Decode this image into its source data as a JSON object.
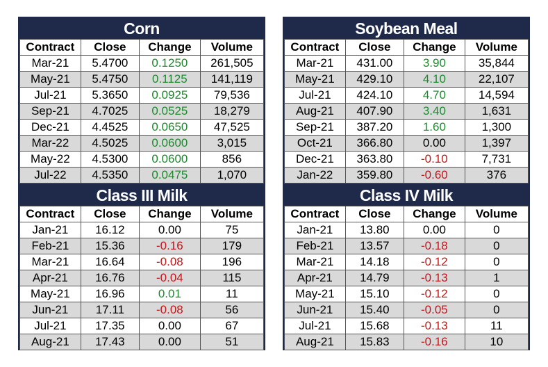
{
  "columns": [
    "Contract",
    "Close",
    "Change",
    "Volume"
  ],
  "tables": [
    {
      "id": "corn",
      "title": "Corn",
      "rows": [
        [
          "Mar-21",
          "5.4700",
          "0.1250",
          "261,505"
        ],
        [
          "May-21",
          "5.4750",
          "0.1125",
          "141,119"
        ],
        [
          "Jul-21",
          "5.3650",
          "0.0925",
          "79,536"
        ],
        [
          "Sep-21",
          "4.7025",
          "0.0525",
          "18,279"
        ],
        [
          "Dec-21",
          "4.4525",
          "0.0650",
          "47,525"
        ],
        [
          "Mar-22",
          "4.5025",
          "0.0600",
          "3,015"
        ],
        [
          "May-22",
          "4.5300",
          "0.0600",
          "856"
        ],
        [
          "Jul-22",
          "4.5350",
          "0.0475",
          "1,070"
        ]
      ]
    },
    {
      "id": "soybean-meal",
      "title": "Soybean Meal",
      "rows": [
        [
          "Mar-21",
          "431.00",
          "3.90",
          "35,844"
        ],
        [
          "May-21",
          "429.10",
          "4.10",
          "22,107"
        ],
        [
          "Jul-21",
          "424.10",
          "4.70",
          "14,594"
        ],
        [
          "Aug-21",
          "407.90",
          "3.40",
          "1,631"
        ],
        [
          "Sep-21",
          "387.20",
          "1.60",
          "1,300"
        ],
        [
          "Oct-21",
          "366.80",
          "0.00",
          "1,397"
        ],
        [
          "Dec-21",
          "363.80",
          "-0.10",
          "7,731"
        ],
        [
          "Jan-22",
          "359.80",
          "-0.60",
          "376"
        ]
      ]
    },
    {
      "id": "class-iii-milk",
      "title": "Class III Milk",
      "rows": [
        [
          "Jan-21",
          "16.12",
          "0.00",
          "75"
        ],
        [
          "Feb-21",
          "15.36",
          "-0.16",
          "179"
        ],
        [
          "Mar-21",
          "16.64",
          "-0.08",
          "196"
        ],
        [
          "Apr-21",
          "16.76",
          "-0.04",
          "115"
        ],
        [
          "May-21",
          "16.96",
          "0.01",
          "11"
        ],
        [
          "Jun-21",
          "17.11",
          "-0.08",
          "56"
        ],
        [
          "Jul-21",
          "17.35",
          "0.00",
          "67"
        ],
        [
          "Aug-21",
          "17.43",
          "0.00",
          "51"
        ]
      ]
    },
    {
      "id": "class-iv-milk",
      "title": "Class IV Milk",
      "rows": [
        [
          "Jan-21",
          "13.80",
          "0.00",
          "0"
        ],
        [
          "Feb-21",
          "13.57",
          "-0.18",
          "0"
        ],
        [
          "Mar-21",
          "14.18",
          "-0.12",
          "0"
        ],
        [
          "Apr-21",
          "14.79",
          "-0.13",
          "1"
        ],
        [
          "May-21",
          "15.10",
          "-0.12",
          "0"
        ],
        [
          "Jun-21",
          "15.40",
          "-0.05",
          "0"
        ],
        [
          "Jul-21",
          "15.68",
          "-0.13",
          "11"
        ],
        [
          "Aug-21",
          "15.83",
          "-0.16",
          "10"
        ]
      ]
    }
  ],
  "colors": {
    "header_bg": "#1f2a4a",
    "positive": "#1e8a2e",
    "negative": "#c0181b",
    "stripe": "#d9d9d9"
  }
}
